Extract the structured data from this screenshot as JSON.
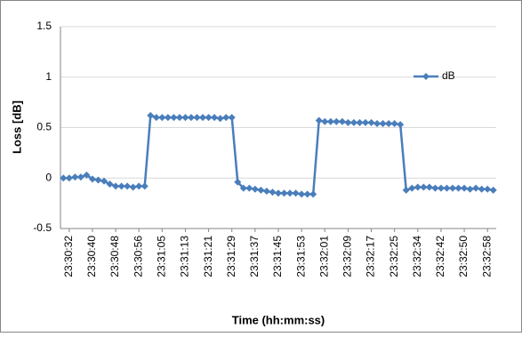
{
  "chart_data": {
    "type": "line",
    "ylabel": "Loss [dB]",
    "xlabel": "Time (hh:mm:ss)",
    "categories": [
      null,
      "23:30:32",
      null,
      null,
      null,
      "23:30:40",
      null,
      null,
      null,
      "23:30:48",
      null,
      null,
      null,
      "23:30:56",
      null,
      null,
      null,
      "23:31:05",
      null,
      null,
      null,
      "23:31:13",
      null,
      null,
      null,
      "23:31:21",
      null,
      null,
      null,
      "23:31:29",
      null,
      null,
      null,
      "23:31:37",
      null,
      null,
      null,
      "23:31:45",
      null,
      null,
      null,
      "23:31:53",
      null,
      null,
      null,
      "23:32:01",
      null,
      null,
      null,
      "23:32:09",
      null,
      null,
      null,
      "23:32:17",
      null,
      null,
      null,
      "23:32:25",
      null,
      null,
      null,
      "23:32:34",
      null,
      null,
      null,
      "23:32:42",
      null,
      null,
      null,
      "23:32:50",
      null,
      null,
      null,
      "23:32:58",
      null
    ],
    "series": [
      {
        "name": "dB",
        "color": "#4a7ebb",
        "values": [
          0,
          0,
          0.01,
          0.01,
          0.03,
          -0.01,
          -0.02,
          -0.03,
          -0.06,
          -0.08,
          -0.08,
          -0.08,
          -0.09,
          -0.08,
          -0.08,
          0.62,
          0.6,
          0.6,
          0.6,
          0.6,
          0.6,
          0.6,
          0.6,
          0.6,
          0.6,
          0.6,
          0.6,
          0.59,
          0.6,
          0.6,
          -0.04,
          -0.1,
          -0.1,
          -0.11,
          -0.12,
          -0.13,
          -0.14,
          -0.15,
          -0.15,
          -0.15,
          -0.15,
          -0.16,
          -0.16,
          -0.16,
          0.57,
          0.56,
          0.56,
          0.56,
          0.56,
          0.55,
          0.55,
          0.55,
          0.55,
          0.55,
          0.54,
          0.54,
          0.54,
          0.54,
          0.53,
          -0.12,
          -0.1,
          -0.09,
          -0.09,
          -0.09,
          -0.1,
          -0.1,
          -0.1,
          -0.1,
          -0.1,
          -0.1,
          -0.11,
          -0.1,
          -0.11,
          -0.11,
          -0.12
        ]
      }
    ],
    "ylim": [
      -0.5,
      1.5
    ],
    "yticks": [
      -0.5,
      0,
      0.5,
      1,
      1.5
    ],
    "grid": true,
    "legend": "upper right"
  }
}
